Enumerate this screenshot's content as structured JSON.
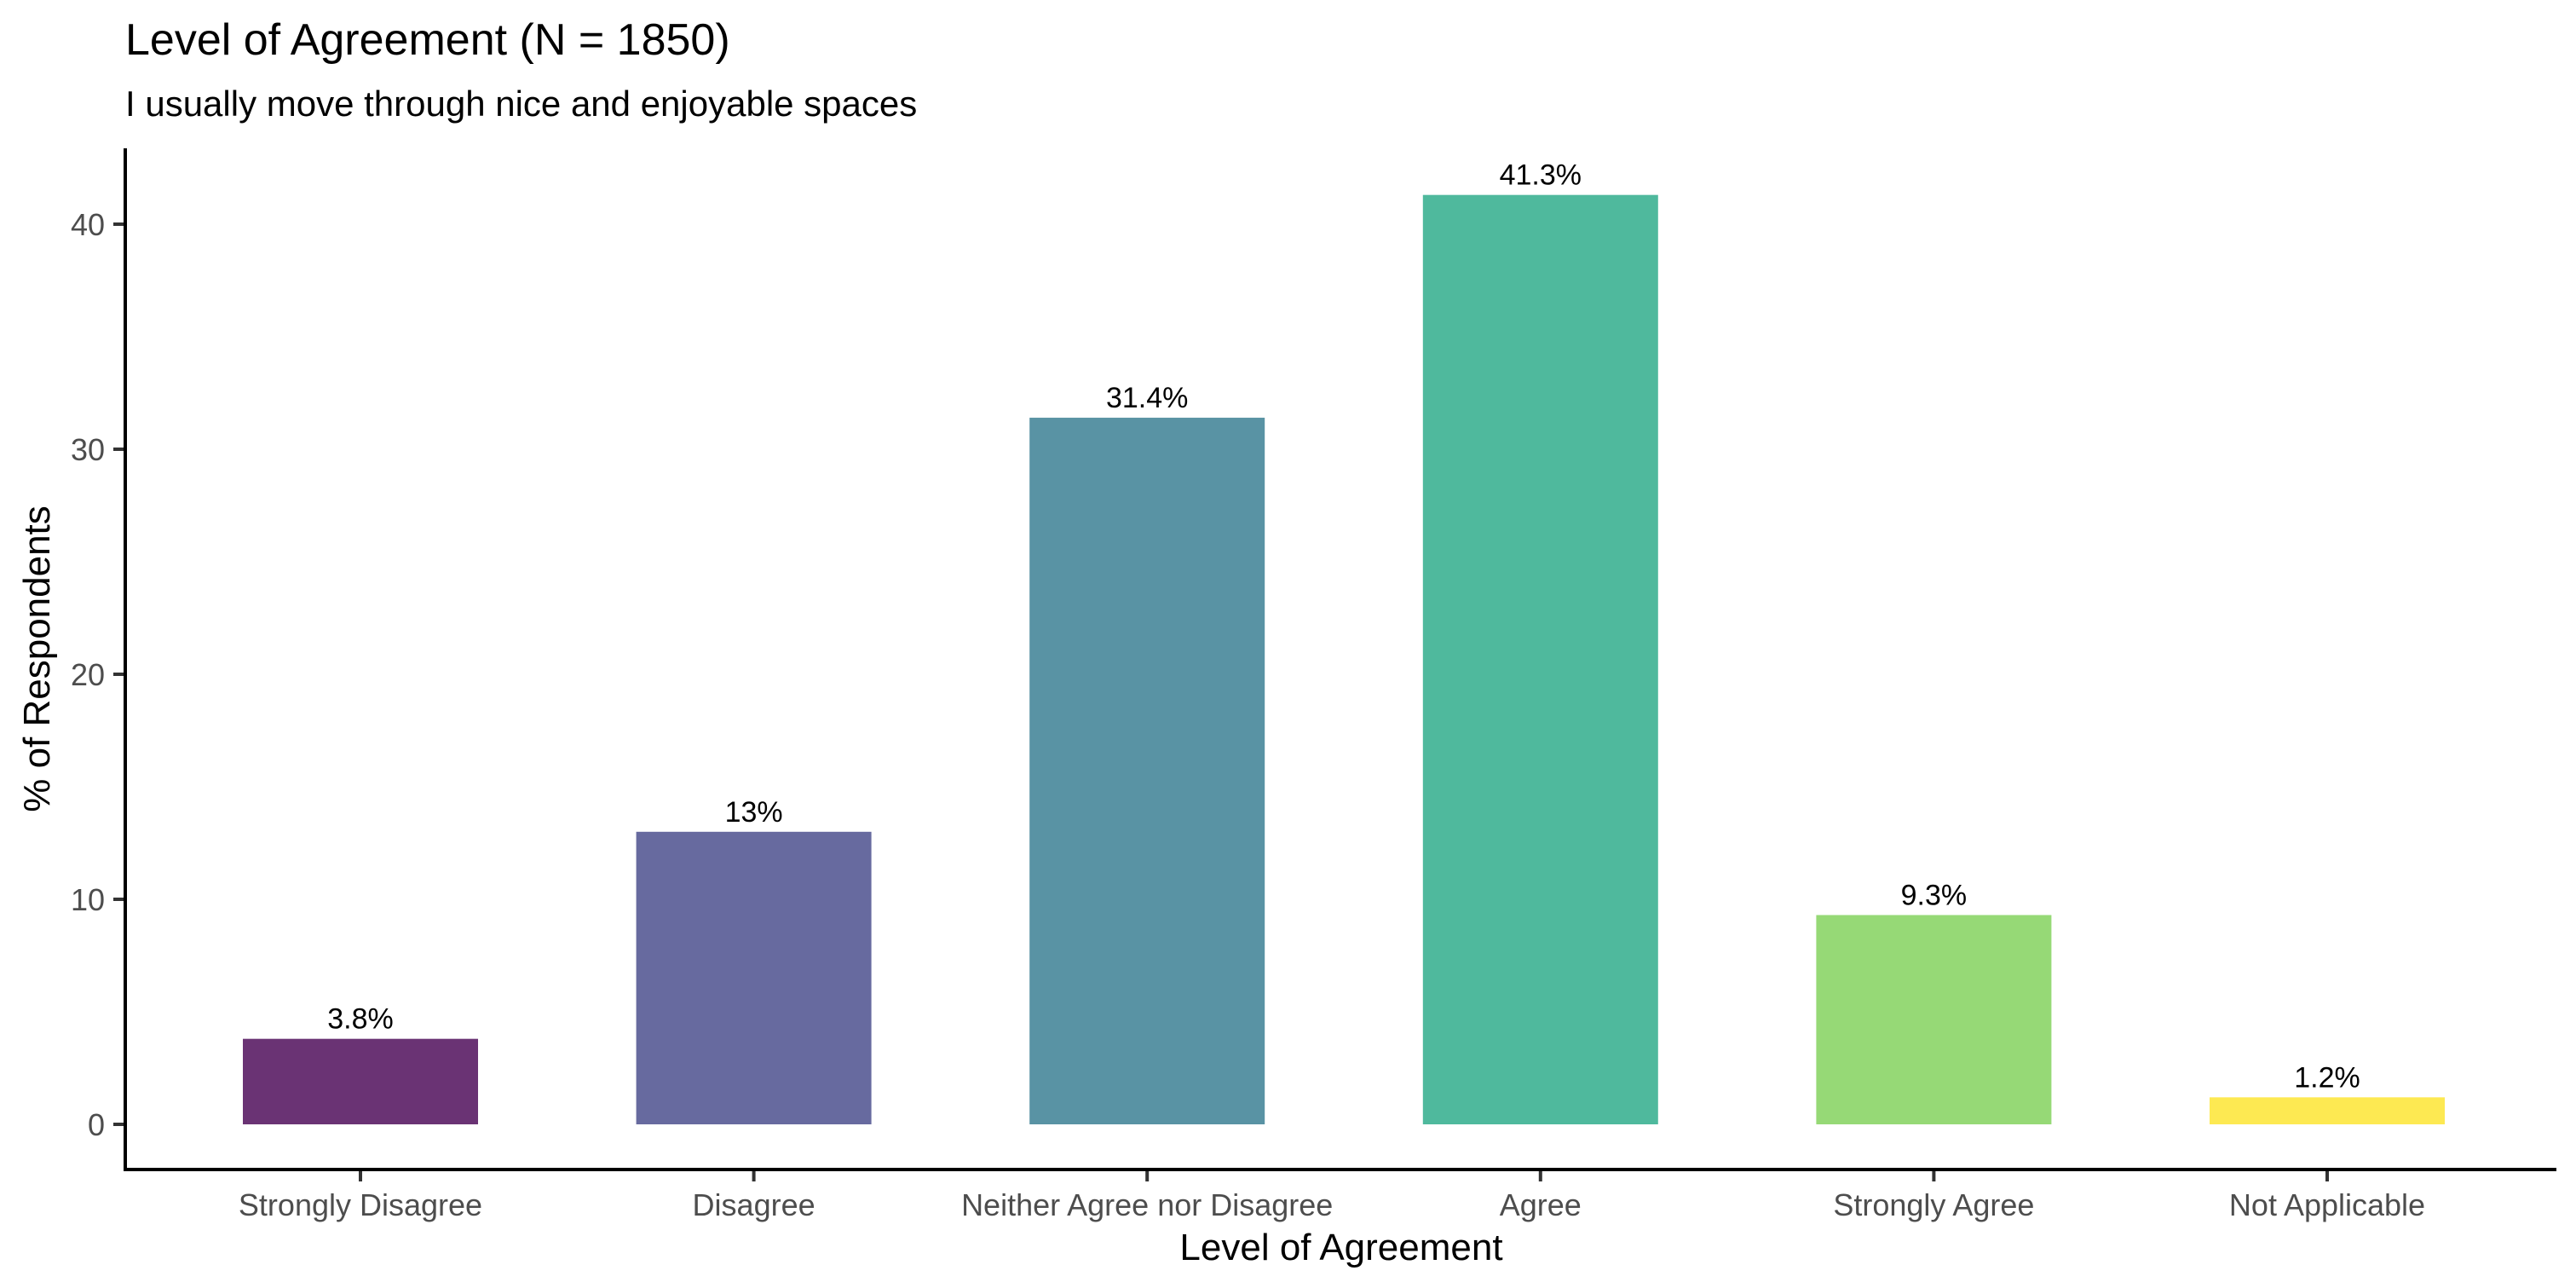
{
  "chart_data": {
    "type": "bar",
    "title": "Level of Agreement (N = 1850)",
    "subtitle": "I usually move through nice and enjoyable spaces",
    "xlabel": "Level of Agreement",
    "ylabel": "% of Respondents",
    "categories": [
      "Strongly Disagree",
      "Disagree",
      "Neither Agree nor Disagree",
      "Agree",
      "Strongly Agree",
      "Not Applicable"
    ],
    "values": [
      3.8,
      13,
      31.4,
      41.3,
      9.3,
      1.2
    ],
    "labels": [
      "3.8%",
      "13%",
      "31.4%",
      "41.3%",
      "9.3%",
      "1.2%"
    ],
    "colors": [
      "#6a3374",
      "#676a9f",
      "#5993a4",
      "#4fb99d",
      "#96d976",
      "#fde952"
    ],
    "yticks": [
      0,
      10,
      20,
      30,
      40
    ],
    "ylim": [
      -2,
      43.4
    ],
    "grid": false,
    "legend": "none"
  }
}
